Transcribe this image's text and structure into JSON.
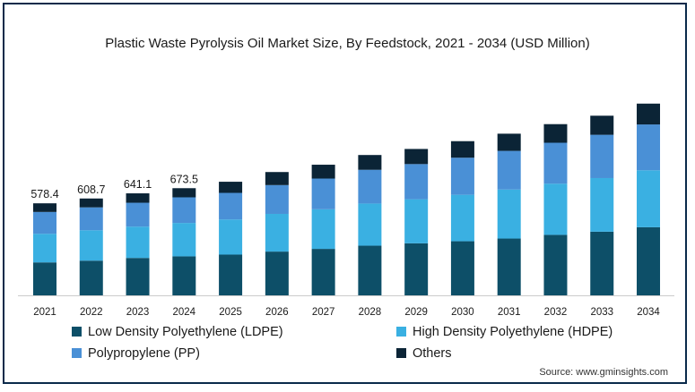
{
  "chart_data": {
    "type": "bar",
    "stacked": true,
    "title": "Plastic Waste Pyrolysis Oil Market Size, By Feedstock, 2021 - 2034 (USD Million)",
    "categories": [
      "2021",
      "2022",
      "2023",
      "2024",
      "2025",
      "2026",
      "2027",
      "2028",
      "2029",
      "2030",
      "2031",
      "2032",
      "2033",
      "2034"
    ],
    "series": [
      {
        "name": "Low Density Polyethylene (LDPE)",
        "color": "#0d4f68",
        "values": [
          207,
          218,
          235,
          245,
          256,
          275,
          292,
          312,
          327,
          340,
          357,
          380,
          400,
          428
        ]
      },
      {
        "name": "High Density Polyethylene (HDPE)",
        "color": "#3ab0e2",
        "values": [
          180,
          191,
          197,
          210,
          221,
          237,
          249,
          265,
          277,
          292,
          308,
          322,
          337,
          358
        ]
      },
      {
        "name": "Polypropylene (PP)",
        "color": "#4a90d6",
        "values": [
          137,
          144,
          150,
          161,
          167,
          181,
          193,
          212,
          221,
          233,
          243,
          257,
          272,
          288
        ]
      },
      {
        "name": "Others",
        "color": "#0b2436",
        "values": [
          54.4,
          55.7,
          59.1,
          57.5,
          70,
          82,
          87,
          93,
          95,
          104,
          108,
          117,
          120,
          131
        ]
      }
    ],
    "totals_labeled": [
      "578.4",
      "608.7",
      "641.1",
      "673.5"
    ],
    "ylim": [
      0,
      1260
    ],
    "grid": false,
    "legend_position": "bottom"
  },
  "source": "Source: www.gminsights.com"
}
